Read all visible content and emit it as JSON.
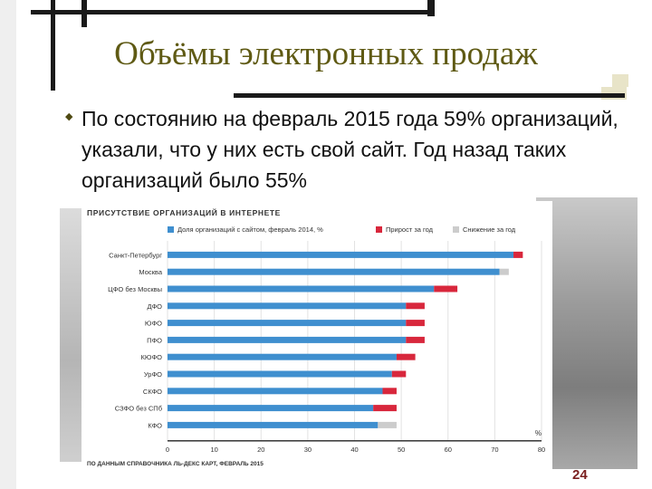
{
  "slide": {
    "title": "Объёмы электронных продаж",
    "bullet": "По состоянию на февраль 2015 года 59% организаций, указали, что у них есть свой сайт. Год назад таких организаций было 55%",
    "page_number": "24"
  },
  "chart_data": {
    "type": "bar",
    "orientation": "horizontal",
    "stacked": true,
    "title": "ПРИСУТСТВИЕ ОРГАНИЗАЦИЙ В ИНТЕРНЕТЕ",
    "source": "ПО ДАННЫМ СПРАВОЧНИКА ЛЬ-ДЕКС КАРТ, ФЕВРАЛЬ 2015",
    "xlabel": "%",
    "xlim": [
      0,
      80
    ],
    "xticks": [
      0,
      10,
      20,
      30,
      40,
      50,
      60,
      70,
      80
    ],
    "grid": true,
    "legend_position": "top",
    "categories": [
      "Санкт-Петербург",
      "Москва",
      "ЦФО без Москвы",
      "ДФО",
      "ЮФО",
      "ПФО",
      "КЮФО",
      "УрФО",
      "СКФО",
      "СЗФО без СПб",
      "КФО"
    ],
    "series": [
      {
        "name": "Доля организаций с сайтом, февраль 2014, %",
        "color": "#3f8fcf",
        "values": [
          74,
          71,
          57,
          51,
          51,
          51,
          49,
          48,
          46,
          44,
          45
        ]
      },
      {
        "name": "Прирост за год",
        "color": "#d8273c",
        "values": [
          2,
          0,
          5,
          4,
          4,
          4,
          4,
          3,
          3,
          5,
          0
        ]
      },
      {
        "name": "Снижение за год",
        "color": "#cccccc",
        "values": [
          0,
          2,
          0,
          0,
          0,
          0,
          0,
          0,
          0,
          0,
          4
        ]
      }
    ]
  }
}
